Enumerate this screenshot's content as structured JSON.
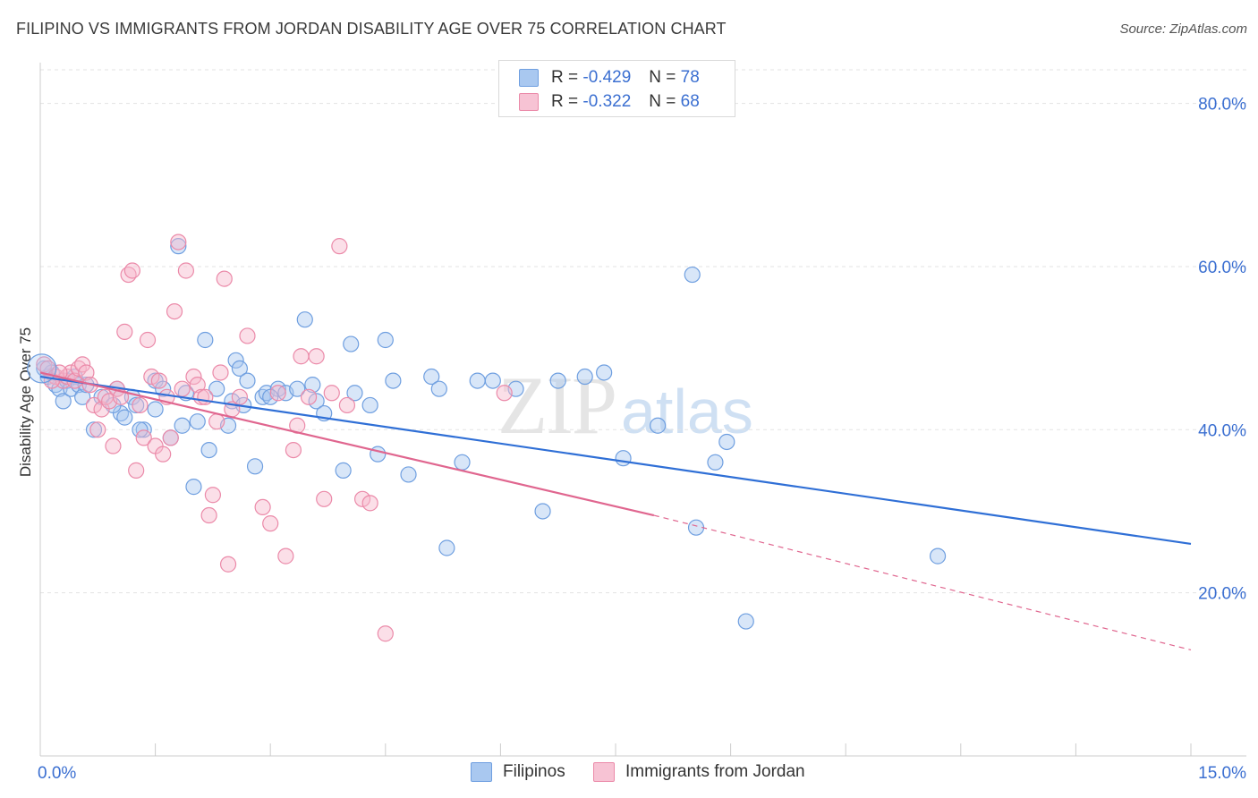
{
  "header": {
    "title": "FILIPINO VS IMMIGRANTS FROM JORDAN DISABILITY AGE OVER 75 CORRELATION CHART",
    "source": "Source: ZipAtlas.com"
  },
  "legend": {
    "r_label": "R =",
    "n_label": "N =",
    "entries": [
      {
        "r": "-0.429",
        "n": "78"
      },
      {
        "r": "-0.322",
        "n": "68"
      }
    ]
  },
  "watermark": {
    "zip": "ZIP",
    "atlas": "atlas"
  },
  "colors": {
    "blue_fill": "#a9c8f0",
    "blue_stroke": "#6f9fe0",
    "blue_line": "#2f6fd6",
    "pink_fill": "#f7b8cc",
    "pink_stroke": "#eb8aa9",
    "pink_line": "#e0668f",
    "axis_text": "#3b6fd1"
  },
  "chart_data": {
    "type": "scatter",
    "title": "FILIPINO VS IMMIGRANTS FROM JORDAN DISABILITY AGE OVER 75 CORRELATION CHART",
    "xlabel": "",
    "ylabel": "Disability Age Over 75",
    "xlim": [
      0,
      15
    ],
    "ylim": [
      0,
      85
    ],
    "x_tick_labels": [
      "0.0%",
      "15.0%"
    ],
    "y_ticks": [
      20,
      40,
      60,
      80
    ],
    "y_tick_labels": [
      "20.0%",
      "40.0%",
      "60.0%",
      "80.0%"
    ],
    "grid": true,
    "legend_position": "bottom-center",
    "series": [
      {
        "name": "Filipinos",
        "color": "#6f9fe0",
        "points": [
          [
            0.05,
            47.5
          ],
          [
            0.1,
            46.5
          ],
          [
            0.15,
            47
          ],
          [
            0.2,
            45.5
          ],
          [
            0.25,
            45
          ],
          [
            0.3,
            43.5
          ],
          [
            0.35,
            46
          ],
          [
            0.4,
            45
          ],
          [
            0.45,
            46.5
          ],
          [
            0.5,
            45.5
          ],
          [
            0.55,
            44
          ],
          [
            0.6,
            45.5
          ],
          [
            0.7,
            40
          ],
          [
            0.8,
            44
          ],
          [
            1.0,
            45
          ],
          [
            1.05,
            42
          ],
          [
            1.1,
            41.5
          ],
          [
            1.2,
            44
          ],
          [
            1.25,
            43
          ],
          [
            1.35,
            40
          ],
          [
            1.5,
            46
          ],
          [
            1.6,
            45
          ],
          [
            1.7,
            39
          ],
          [
            1.8,
            62.5
          ],
          [
            1.85,
            40.5
          ],
          [
            1.9,
            44.5
          ],
          [
            2.0,
            33
          ],
          [
            2.15,
            51
          ],
          [
            2.2,
            37.5
          ],
          [
            2.3,
            45
          ],
          [
            2.45,
            40.5
          ],
          [
            2.5,
            43.5
          ],
          [
            2.55,
            48.5
          ],
          [
            2.6,
            47.5
          ],
          [
            2.65,
            43
          ],
          [
            2.8,
            35.5
          ],
          [
            2.9,
            44
          ],
          [
            2.95,
            44.5
          ],
          [
            3.1,
            45
          ],
          [
            3.2,
            44.5
          ],
          [
            3.35,
            45
          ],
          [
            3.45,
            53.5
          ],
          [
            3.55,
            45.5
          ],
          [
            3.6,
            43.5
          ],
          [
            3.7,
            42
          ],
          [
            3.95,
            35
          ],
          [
            4.05,
            50.5
          ],
          [
            4.1,
            44.5
          ],
          [
            4.3,
            43
          ],
          [
            4.5,
            51
          ],
          [
            4.6,
            46
          ],
          [
            4.8,
            34.5
          ],
          [
            5.1,
            46.5
          ],
          [
            5.2,
            45
          ],
          [
            5.3,
            25.5
          ],
          [
            5.5,
            36
          ],
          [
            5.7,
            46
          ],
          [
            5.9,
            46
          ],
          [
            6.2,
            45
          ],
          [
            6.55,
            30
          ],
          [
            6.75,
            46
          ],
          [
            7.1,
            46.5
          ],
          [
            7.35,
            47
          ],
          [
            7.6,
            36.5
          ],
          [
            8.05,
            40.5
          ],
          [
            8.5,
            59
          ],
          [
            8.55,
            28
          ],
          [
            8.8,
            36
          ],
          [
            8.95,
            38.5
          ],
          [
            9.2,
            16.5
          ],
          [
            11.7,
            24.5
          ],
          [
            1.3,
            40
          ],
          [
            3.0,
            44
          ],
          [
            4.4,
            37
          ],
          [
            2.05,
            41
          ],
          [
            0.95,
            43
          ],
          [
            1.5,
            42.5
          ],
          [
            2.7,
            46
          ]
        ],
        "trend": {
          "x": [
            0.0,
            15.0
          ],
          "y": [
            46.5,
            26.0
          ]
        }
      },
      {
        "name": "Immigrants from Jordan",
        "color": "#eb8aa9",
        "points": [
          [
            0.05,
            48
          ],
          [
            0.1,
            47.5
          ],
          [
            0.2,
            46.5
          ],
          [
            0.3,
            46
          ],
          [
            0.35,
            46.5
          ],
          [
            0.4,
            47
          ],
          [
            0.45,
            46
          ],
          [
            0.5,
            47.5
          ],
          [
            0.55,
            48
          ],
          [
            0.6,
            47
          ],
          [
            0.65,
            45.5
          ],
          [
            0.7,
            43
          ],
          [
            0.75,
            40
          ],
          [
            0.8,
            42.5
          ],
          [
            0.85,
            44
          ],
          [
            0.9,
            43.5
          ],
          [
            1.0,
            45
          ],
          [
            1.05,
            44
          ],
          [
            1.1,
            52
          ],
          [
            1.15,
            59
          ],
          [
            1.2,
            59.5
          ],
          [
            1.25,
            35
          ],
          [
            1.35,
            39
          ],
          [
            1.4,
            51
          ],
          [
            1.45,
            46.5
          ],
          [
            1.5,
            38
          ],
          [
            1.6,
            37
          ],
          [
            1.65,
            44
          ],
          [
            1.7,
            39
          ],
          [
            1.75,
            54.5
          ],
          [
            1.8,
            63
          ],
          [
            1.9,
            59.5
          ],
          [
            2.0,
            46.5
          ],
          [
            2.05,
            45.5
          ],
          [
            2.1,
            44
          ],
          [
            2.2,
            29.5
          ],
          [
            2.25,
            32
          ],
          [
            2.3,
            41
          ],
          [
            2.35,
            47
          ],
          [
            2.4,
            58.5
          ],
          [
            2.45,
            23.5
          ],
          [
            2.5,
            42.5
          ],
          [
            2.6,
            44
          ],
          [
            2.7,
            51.5
          ],
          [
            2.9,
            30.5
          ],
          [
            3.0,
            28.5
          ],
          [
            3.1,
            44.5
          ],
          [
            3.2,
            24.5
          ],
          [
            3.3,
            37.5
          ],
          [
            3.4,
            49
          ],
          [
            3.5,
            44
          ],
          [
            3.6,
            49
          ],
          [
            3.7,
            31.5
          ],
          [
            3.8,
            44.5
          ],
          [
            3.9,
            62.5
          ],
          [
            4.0,
            43
          ],
          [
            4.2,
            31.5
          ],
          [
            4.3,
            31
          ],
          [
            4.5,
            15
          ],
          [
            6.05,
            44.5
          ],
          [
            0.15,
            46
          ],
          [
            0.25,
            47
          ],
          [
            1.55,
            46
          ],
          [
            2.15,
            44
          ],
          [
            0.95,
            38
          ],
          [
            1.3,
            43
          ],
          [
            1.85,
            45
          ],
          [
            3.35,
            40.5
          ]
        ],
        "trend": {
          "x": [
            0.0,
            8.0,
            15.0
          ],
          "y": [
            47.0,
            29.5,
            13.0
          ],
          "solid_until_x": 8.0
        }
      }
    ]
  }
}
